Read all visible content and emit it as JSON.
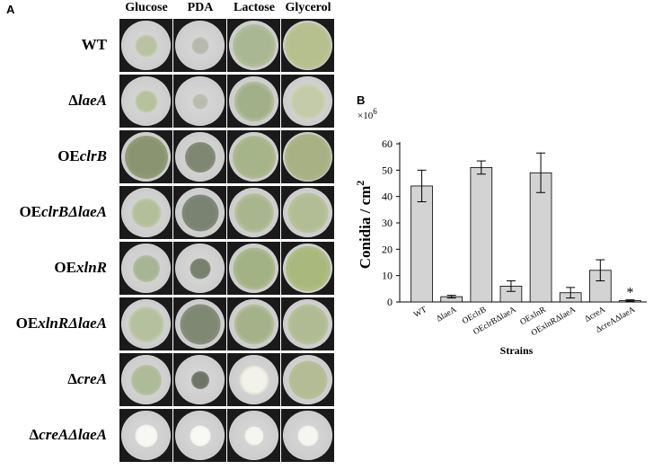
{
  "panel_a": {
    "letter": "A",
    "media": [
      "Glucose",
      "PDA",
      "Lactose",
      "Glycerol"
    ],
    "strains": [
      {
        "id": "wt",
        "prefix": "WT",
        "italic": "",
        "suffix": "",
        "colonies": [
          {
            "size": 0.45,
            "color": "#b9c2a2",
            "edge": "#e6e8dc"
          },
          {
            "size": 0.35,
            "color": "#b7b9ac",
            "edge": "#d8d8d0"
          },
          {
            "size": 0.88,
            "color": "#a9b893",
            "edge": "#c6cfb2"
          },
          {
            "size": 0.94,
            "color": "#b6bf8e",
            "edge": "#c9cfa7"
          }
        ]
      },
      {
        "id": "laea",
        "prefix": "Δ",
        "italic": "laeA",
        "suffix": "",
        "colonies": [
          {
            "size": 0.45,
            "color": "#b5c29c",
            "edge": "#e2e6d6"
          },
          {
            "size": 0.3,
            "color": "#b9bcae",
            "edge": "#d6d6cc"
          },
          {
            "size": 0.82,
            "color": "#a2b08a",
            "edge": "#dfe3d0"
          },
          {
            "size": 0.72,
            "color": "#c3cba8",
            "edge": "#e4e7d6"
          }
        ]
      },
      {
        "id": "oeclrb",
        "prefix": "OE",
        "italic": "clrB",
        "suffix": "",
        "colonies": [
          {
            "size": 0.88,
            "color": "#8a9470",
            "edge": "#a9b08d"
          },
          {
            "size": 0.62,
            "color": "#7f8772",
            "edge": "#9da090"
          },
          {
            "size": 0.88,
            "color": "#a6b489",
            "edge": "#c2cba7"
          },
          {
            "size": 0.94,
            "color": "#a7b183",
            "edge": "#bcc39a"
          }
        ]
      },
      {
        "id": "oeclrb-laea",
        "prefix": "OE",
        "italic": "clrB",
        "suffix": "ΔlaeA",
        "colonies": [
          {
            "size": 0.6,
            "color": "#b3bf9a",
            "edge": "#dde2cd"
          },
          {
            "size": 0.75,
            "color": "#7a8371",
            "edge": "#97998c"
          },
          {
            "size": 0.8,
            "color": "#a9b68d",
            "edge": "#d9dec9"
          },
          {
            "size": 0.82,
            "color": "#b3bd95",
            "edge": "#cdd3b3"
          }
        ]
      },
      {
        "id": "oexlnr",
        "prefix": "OE",
        "italic": "xlnR",
        "suffix": "",
        "colonies": [
          {
            "size": 0.55,
            "color": "#a7b594",
            "edge": "#cfd6be"
          },
          {
            "size": 0.42,
            "color": "#79806e",
            "edge": "#a8aa9c"
          },
          {
            "size": 0.85,
            "color": "#a2b285",
            "edge": "#c7cfae"
          },
          {
            "size": 0.9,
            "color": "#a9b97e",
            "edge": "#c3cc98"
          }
        ]
      },
      {
        "id": "oexlnr-laea",
        "prefix": "OE",
        "italic": "xlnR",
        "suffix": "ΔlaeA",
        "colonies": [
          {
            "size": 0.72,
            "color": "#b5c09e",
            "edge": "#e3e6d6"
          },
          {
            "size": 0.82,
            "color": "#7f8873",
            "edge": "#a0a392"
          },
          {
            "size": 0.82,
            "color": "#a4b189",
            "edge": "#e0e4d2"
          },
          {
            "size": 0.82,
            "color": "#b1bb93",
            "edge": "#cdd3b4"
          }
        ]
      },
      {
        "id": "crea",
        "prefix": "Δ",
        "italic": "creA",
        "suffix": "",
        "colonies": [
          {
            "size": 0.62,
            "color": "#aebb98",
            "edge": "#c9d1b6"
          },
          {
            "size": 0.36,
            "color": "#6e7466",
            "edge": "#b5b7aa"
          },
          {
            "size": 0.6,
            "color": "#f2f2ea",
            "edge": "#b3bd98"
          },
          {
            "size": 0.78,
            "color": "#b3bc94",
            "edge": "#c8cdb0"
          }
        ]
      },
      {
        "id": "crea-laea",
        "prefix": "Δ",
        "italic": "creA",
        "suffix": "ΔlaeA",
        "colonies": [
          {
            "size": 0.45,
            "color": "#f7f7f3",
            "edge": "#e0e0da"
          },
          {
            "size": 0.42,
            "color": "#f8f8f5",
            "edge": "#e2e2dc"
          },
          {
            "size": 0.38,
            "color": "#f6f6f1",
            "edge": "#dedeD8"
          },
          {
            "size": 0.42,
            "color": "#f6f6f1",
            "edge": "#dedeD8"
          }
        ]
      }
    ]
  },
  "panel_b": {
    "letter": "B",
    "multiplier_base": "×10",
    "multiplier_exp": "6",
    "ylabel_main": "Conidia / cm",
    "ylabel_exp": "2",
    "xlabel": "Strains",
    "significance": "*"
  },
  "chart_data": {
    "type": "bar",
    "categories": [
      "WT",
      "ΔlaeA",
      "OEclrB",
      "OEclrBΔlaeA",
      "OExlnR",
      "OExlnRΔlaeA",
      "ΔcreA",
      "ΔcreAΔlaeA"
    ],
    "values": [
      44,
      2,
      51,
      6,
      49,
      3.5,
      12,
      0.5
    ],
    "errors": [
      6,
      0.5,
      2.5,
      2,
      7.5,
      2,
      4,
      0.3
    ],
    "ylim": [
      0,
      60
    ],
    "yticks": [
      0,
      10,
      20,
      30,
      40,
      50,
      60
    ],
    "bar_color": "#d3d3d3",
    "starred_index": 7,
    "grid": false
  }
}
